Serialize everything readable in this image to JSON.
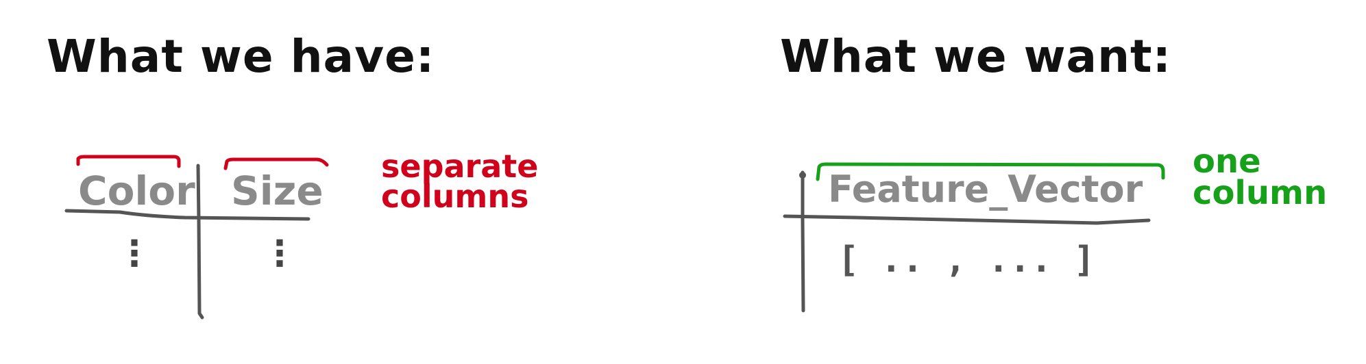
{
  "left_panel": {
    "heading": "What we have:",
    "columns": [
      "Color",
      "Size"
    ],
    "cell_marker": "⋮",
    "annotation": "separate\ncolumns"
  },
  "right_panel": {
    "heading": "What we want:",
    "columns": [
      "Feature_Vector"
    ],
    "cell_value": "[ .. , ... ]",
    "annotation": "one\ncolumn"
  },
  "colors": {
    "heading": "#111111",
    "column_header": "#8a8a8a",
    "table_lines": "#555555",
    "separate_bracket": "#d0021b",
    "one_bracket": "#17a11a"
  }
}
